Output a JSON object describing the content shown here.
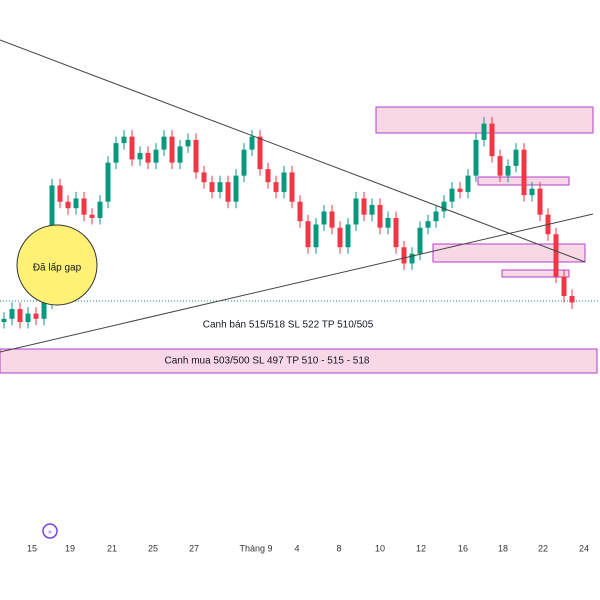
{
  "chart_data": {
    "type": "candlestick",
    "ylim": [
      472,
      555
    ],
    "open": [
      505.5,
      506.0,
      507.5,
      505.5,
      506.8,
      506.0,
      508.5,
      526.5,
      524.0,
      523.0,
      524.5,
      522.0,
      521.5,
      524.0,
      530.0,
      533.0,
      534.0,
      530.5,
      531.5,
      530.0,
      532.0,
      534.0,
      530.0,
      532.5,
      533.5,
      528.5,
      527.0,
      525.5,
      527.0,
      524.0,
      528.0,
      532.0,
      534.0,
      529.0,
      527.0,
      525.5,
      528.5,
      524.0,
      521.0,
      517.0,
      520.5,
      522.5,
      520.0,
      517.0,
      520.5,
      524.5,
      522.0,
      523.5,
      520.0,
      521.5,
      517.0,
      514.5,
      516.0,
      520.0,
      521.0,
      522.5,
      524.0,
      526.0,
      525.5,
      528.0,
      533.5,
      536.0,
      531.0,
      528.0,
      529.5,
      532.0,
      525.0,
      526.0,
      522.0,
      519.0,
      512.5,
      509.5
    ],
    "high": [
      507.0,
      508.5,
      508.5,
      507.8,
      507.8,
      509.5,
      527.5,
      527.5,
      525.0,
      525.5,
      525.5,
      523.0,
      525.0,
      531.0,
      534.0,
      535.0,
      535.0,
      532.5,
      532.5,
      533.0,
      535.0,
      535.0,
      533.5,
      534.5,
      534.5,
      529.5,
      528.0,
      528.0,
      528.0,
      529.0,
      533.0,
      535.0,
      535.0,
      530.0,
      528.0,
      529.5,
      529.5,
      525.0,
      522.0,
      521.5,
      523.5,
      523.5,
      521.0,
      521.5,
      525.5,
      525.5,
      524.5,
      524.5,
      522.5,
      522.5,
      518.0,
      517.0,
      521.0,
      522.0,
      523.5,
      525.0,
      527.0,
      527.0,
      529.0,
      534.5,
      537.0,
      537.0,
      532.0,
      530.5,
      533.0,
      533.0,
      527.0,
      527.0,
      523.0,
      520.0,
      513.5,
      510.5
    ],
    "low": [
      504.5,
      505.0,
      504.5,
      504.5,
      505.0,
      505.0,
      507.5,
      523.0,
      522.0,
      522.0,
      521.0,
      520.5,
      520.5,
      523.0,
      529.0,
      532.0,
      529.5,
      529.5,
      529.0,
      529.0,
      531.0,
      529.0,
      529.0,
      531.5,
      527.5,
      526.0,
      524.5,
      524.5,
      523.0,
      523.0,
      527.0,
      531.0,
      528.0,
      526.0,
      524.5,
      524.5,
      523.0,
      520.0,
      516.0,
      516.0,
      519.5,
      519.0,
      516.0,
      516.0,
      519.5,
      521.0,
      521.0,
      519.0,
      519.0,
      516.0,
      513.5,
      513.5,
      515.0,
      519.0,
      520.0,
      521.5,
      523.0,
      524.5,
      524.5,
      527.0,
      532.5,
      530.0,
      527.0,
      527.0,
      528.5,
      524.0,
      524.0,
      521.0,
      518.0,
      511.5,
      508.5,
      507.5
    ],
    "close": [
      506.0,
      507.5,
      505.5,
      506.8,
      506.0,
      508.5,
      526.5,
      524.0,
      523.0,
      524.5,
      522.0,
      521.5,
      524.0,
      530.0,
      533.0,
      534.0,
      530.5,
      531.5,
      530.0,
      532.0,
      534.0,
      530.0,
      532.5,
      533.5,
      528.5,
      527.0,
      525.5,
      527.0,
      524.0,
      528.0,
      532.0,
      534.0,
      529.0,
      527.0,
      525.5,
      528.5,
      524.0,
      521.0,
      517.0,
      520.5,
      522.5,
      520.0,
      517.0,
      520.5,
      524.5,
      522.0,
      523.5,
      520.0,
      521.5,
      517.0,
      514.5,
      516.0,
      520.0,
      521.0,
      522.5,
      524.0,
      526.0,
      525.5,
      528.0,
      533.5,
      536.0,
      531.0,
      528.0,
      529.5,
      532.0,
      525.0,
      526.0,
      522.0,
      519.0,
      512.5,
      509.5,
      508.5
    ],
    "up_color": "#089981",
    "down_color": "#f23645",
    "x_labels": [
      "15",
      "19",
      "21",
      "25",
      "27",
      "Tháng 9",
      "4",
      "8",
      "10",
      "12",
      "16",
      "18",
      "22",
      "24"
    ],
    "annotations": [
      "Đã lấp gap",
      "Canh bán 515/518 SL 522 TP 510/505",
      "Canh mua 503/500 SL 497 TP 510 - 515 - 518"
    ]
  }
}
